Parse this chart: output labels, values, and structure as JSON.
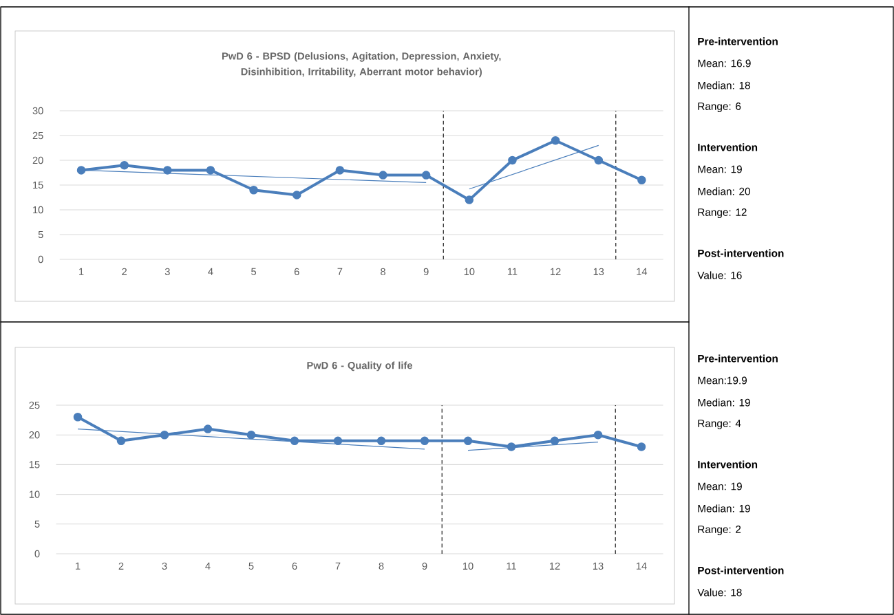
{
  "chart_data": [
    {
      "type": "line",
      "title": "PwD 6 - BPSD (Delusions, Agitation, Depression, Anxiety, Disinhibition, Irritability, Aberrant motor behavior)",
      "x": [
        1,
        2,
        3,
        4,
        5,
        6,
        7,
        8,
        9,
        10,
        11,
        12,
        13,
        14
      ],
      "xlim": [
        0.5,
        14.5
      ],
      "xticks": [
        1,
        2,
        3,
        4,
        5,
        6,
        7,
        8,
        9,
        10,
        11,
        12,
        13,
        14
      ],
      "ylim": [
        0,
        30
      ],
      "yticks": [
        0,
        5,
        10,
        15,
        20,
        25,
        30
      ],
      "grid": "y",
      "series": [
        {
          "color": "#4a7ebb",
          "marker": "circle",
          "values": [
            18,
            19,
            18,
            18,
            14,
            13,
            18,
            17,
            17,
            12,
            20,
            24,
            20,
            16
          ]
        },
        {
          "type": "line",
          "color": "#4a7ebb",
          "marker": "none",
          "x": [
            1,
            9
          ],
          "values": [
            18,
            15.5
          ]
        },
        {
          "type": "line",
          "color": "#4a7ebb",
          "marker": "none",
          "x": [
            10,
            13
          ],
          "values": [
            14.2,
            23
          ]
        }
      ],
      "ref_lines": [
        {
          "axis": "x",
          "value": 9.4,
          "color": "#000000",
          "line_style": "dashed"
        },
        {
          "axis": "x",
          "value": 13.4,
          "color": "#000000",
          "line_style": "dashed"
        }
      ]
    },
    {
      "type": "other",
      "annotations": [
        "**Pre-intervention**",
        "Mean: 16.9",
        "Median: 18",
        "Range: 6",
        "**Intervention**",
        "Mean: 19",
        "Median: 20",
        "Range: 12",
        "**Post-intervention**",
        "Value: 16"
      ]
    },
    {
      "type": "line",
      "title": "PwD 6 - Quality of life",
      "x": [
        1,
        2,
        3,
        4,
        5,
        6,
        7,
        8,
        9,
        10,
        11,
        12,
        13,
        14
      ],
      "xlim": [
        0.5,
        14.5
      ],
      "xticks": [
        1,
        2,
        3,
        4,
        5,
        6,
        7,
        8,
        9,
        10,
        11,
        12,
        13,
        14
      ],
      "ylim": [
        0,
        25
      ],
      "yticks": [
        0,
        5,
        10,
        15,
        20,
        25
      ],
      "grid": "y",
      "series": [
        {
          "color": "#4a7ebb",
          "marker": "circle",
          "values": [
            23,
            19,
            20,
            21,
            20,
            19,
            19,
            19,
            19,
            19,
            18,
            19,
            20,
            18
          ]
        },
        {
          "type": "line",
          "color": "#4a7ebb",
          "marker": "none",
          "x": [
            1,
            9
          ],
          "values": [
            21,
            17.6
          ]
        },
        {
          "type": "line",
          "color": "#4a7ebb",
          "marker": "none",
          "x": [
            10,
            13
          ],
          "values": [
            17.4,
            18.8
          ]
        }
      ],
      "ref_lines": [
        {
          "axis": "x",
          "value": 9.4,
          "color": "#000000",
          "line_style": "dashed"
        },
        {
          "axis": "x",
          "value": 13.4,
          "color": "#000000",
          "line_style": "dashed"
        }
      ]
    },
    {
      "type": "other",
      "annotations": [
        "**Pre-intervention**",
        "Mean:19.9",
        "Median: 19",
        "Range: 4",
        "**Intervention**",
        "Mean: 19",
        "Median: 19",
        "Range: 2",
        "**Post-intervention**",
        "Value: 18"
      ]
    }
  ]
}
